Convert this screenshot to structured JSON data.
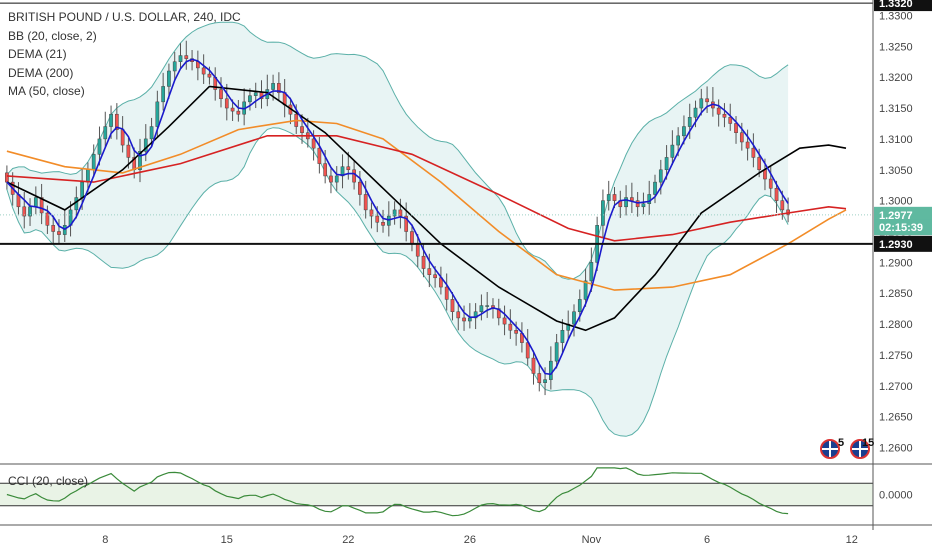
{
  "legend": {
    "title": "BRITISH POUND / U.S. DOLLAR, 240, IDC",
    "bb": "BB (20, close, 2)",
    "dema21": "DEMA (21)",
    "dema200": "DEMA (200)",
    "ma50": "MA (50, close)"
  },
  "cci_label": "CCI (20, close)",
  "flags": {
    "count_a": "5",
    "count_b": "15",
    "icon": "uk-us-flag-icon"
  },
  "colors": {
    "candle_up": "#26a69a",
    "candle_down": "#ef5350",
    "bb_fill": "#e8f4f4",
    "bb_line": "#5bb0a8",
    "dema21": "#1a1acc",
    "dema200": "#000000",
    "ma50": "#f28c28",
    "red_ma": "#d62222",
    "cci_line": "#3a8a3a",
    "cci_fill": "#e9f3e6"
  },
  "chart_data": {
    "type": "candlestick",
    "symbol": "BRITISH POUND / U.S. DOLLAR",
    "timeframe": "240",
    "source": "IDC",
    "x_tick_labels": [
      {
        "label": "8",
        "index": 17
      },
      {
        "label": "15",
        "index": 38
      },
      {
        "label": "22",
        "index": 59
      },
      {
        "label": "26",
        "index": 80
      },
      {
        "label": "Nov",
        "index": 101
      },
      {
        "label": "6",
        "index": 121
      },
      {
        "label": "12",
        "index": 146
      }
    ],
    "y_tick_labels": [
      "1.3300",
      "1.3250",
      "1.3200",
      "1.3150",
      "1.3100",
      "1.3050",
      "1.3000",
      "1.2950",
      "1.2900",
      "1.2850",
      "1.2800",
      "1.2750",
      "1.2700",
      "1.2650",
      "1.2600"
    ],
    "ylim": [
      1.2575,
      1.3325
    ],
    "price_tags": [
      {
        "label": "1.3320",
        "value": 1.332,
        "style": "dark"
      },
      {
        "label": "1.2977",
        "value": 1.2977,
        "style": "green"
      },
      {
        "label": "02:15:39",
        "value": 1.2957,
        "style": "green"
      },
      {
        "label": "1.2930",
        "value": 1.293,
        "style": "dark"
      }
    ],
    "hlines": [
      {
        "value": 1.332,
        "style": "thin"
      },
      {
        "value": 1.293,
        "style": "thick"
      }
    ],
    "candle_closes": [
      1.303,
      1.301,
      1.299,
      1.2975,
      1.299,
      1.3005,
      1.298,
      1.296,
      1.295,
      1.2945,
      1.296,
      1.2985,
      1.3005,
      1.303,
      1.305,
      1.3075,
      1.31,
      1.312,
      1.314,
      1.3115,
      1.309,
      1.307,
      1.305,
      1.308,
      1.31,
      1.312,
      1.316,
      1.3185,
      1.321,
      1.3225,
      1.3235,
      1.323,
      1.3225,
      1.3215,
      1.3205,
      1.32,
      1.318,
      1.3165,
      1.315,
      1.3145,
      1.314,
      1.316,
      1.317,
      1.3175,
      1.3165,
      1.318,
      1.319,
      1.3175,
      1.3155,
      1.314,
      1.312,
      1.311,
      1.31,
      1.3085,
      1.306,
      1.304,
      1.303,
      1.304,
      1.3055,
      1.305,
      1.303,
      1.301,
      1.2985,
      1.2975,
      1.2965,
      1.296,
      1.2975,
      1.2985,
      1.2975,
      1.295,
      1.293,
      1.291,
      1.289,
      1.288,
      1.2875,
      1.286,
      1.284,
      1.282,
      1.281,
      1.2805,
      1.281,
      1.282,
      1.283,
      1.283,
      1.2825,
      1.281,
      1.28,
      1.279,
      1.2785,
      1.277,
      1.2745,
      1.272,
      1.2705,
      1.271,
      1.274,
      1.277,
      1.279,
      1.28,
      1.282,
      1.284,
      1.287,
      1.29,
      1.296,
      1.3,
      1.301,
      1.3,
      1.299,
      1.3005,
      1.3,
      1.299,
      1.2995,
      1.301,
      1.303,
      1.305,
      1.307,
      1.309,
      1.3105,
      1.312,
      1.3135,
      1.315,
      1.3165,
      1.316,
      1.315,
      1.314,
      1.3135,
      1.3125,
      1.311,
      1.3095,
      1.3085,
      1.307,
      1.305,
      1.3035,
      1.302,
      1.3,
      1.2985,
      1.2977
    ],
    "ma50_curve": [
      [
        0,
        1.308
      ],
      [
        10,
        1.3055
      ],
      [
        20,
        1.3045
      ],
      [
        30,
        1.3075
      ],
      [
        40,
        1.3115
      ],
      [
        50,
        1.313
      ],
      [
        57,
        1.3125
      ],
      [
        65,
        1.31
      ],
      [
        75,
        1.303
      ],
      [
        85,
        1.295
      ],
      [
        95,
        1.288
      ],
      [
        105,
        1.2855
      ],
      [
        115,
        1.286
      ],
      [
        125,
        1.288
      ],
      [
        135,
        1.293
      ],
      [
        142,
        1.297
      ],
      [
        145,
        1.2985
      ]
    ],
    "red_ma_curve": [
      [
        0,
        1.304
      ],
      [
        15,
        1.303
      ],
      [
        30,
        1.306
      ],
      [
        45,
        1.3105
      ],
      [
        57,
        1.3105
      ],
      [
        70,
        1.3075
      ],
      [
        85,
        1.301
      ],
      [
        97,
        1.2955
      ],
      [
        105,
        1.2935
      ],
      [
        115,
        1.2945
      ],
      [
        125,
        1.2965
      ],
      [
        135,
        1.298
      ],
      [
        142,
        1.299
      ],
      [
        145,
        1.2987
      ]
    ],
    "dema200_curve": [
      [
        0,
        1.303
      ],
      [
        10,
        1.2985
      ],
      [
        20,
        1.305
      ],
      [
        28,
        1.312
      ],
      [
        35,
        1.3185
      ],
      [
        45,
        1.3175
      ],
      [
        55,
        1.311
      ],
      [
        65,
        1.302
      ],
      [
        75,
        1.293
      ],
      [
        85,
        1.286
      ],
      [
        95,
        1.2805
      ],
      [
        100,
        1.279
      ],
      [
        105,
        1.281
      ],
      [
        112,
        1.288
      ],
      [
        120,
        1.298
      ],
      [
        130,
        1.3045
      ],
      [
        137,
        1.3085
      ],
      [
        142,
        1.309
      ],
      [
        145,
        1.3085
      ]
    ],
    "cci_band": [
      -0.08,
      0.08
    ]
  }
}
